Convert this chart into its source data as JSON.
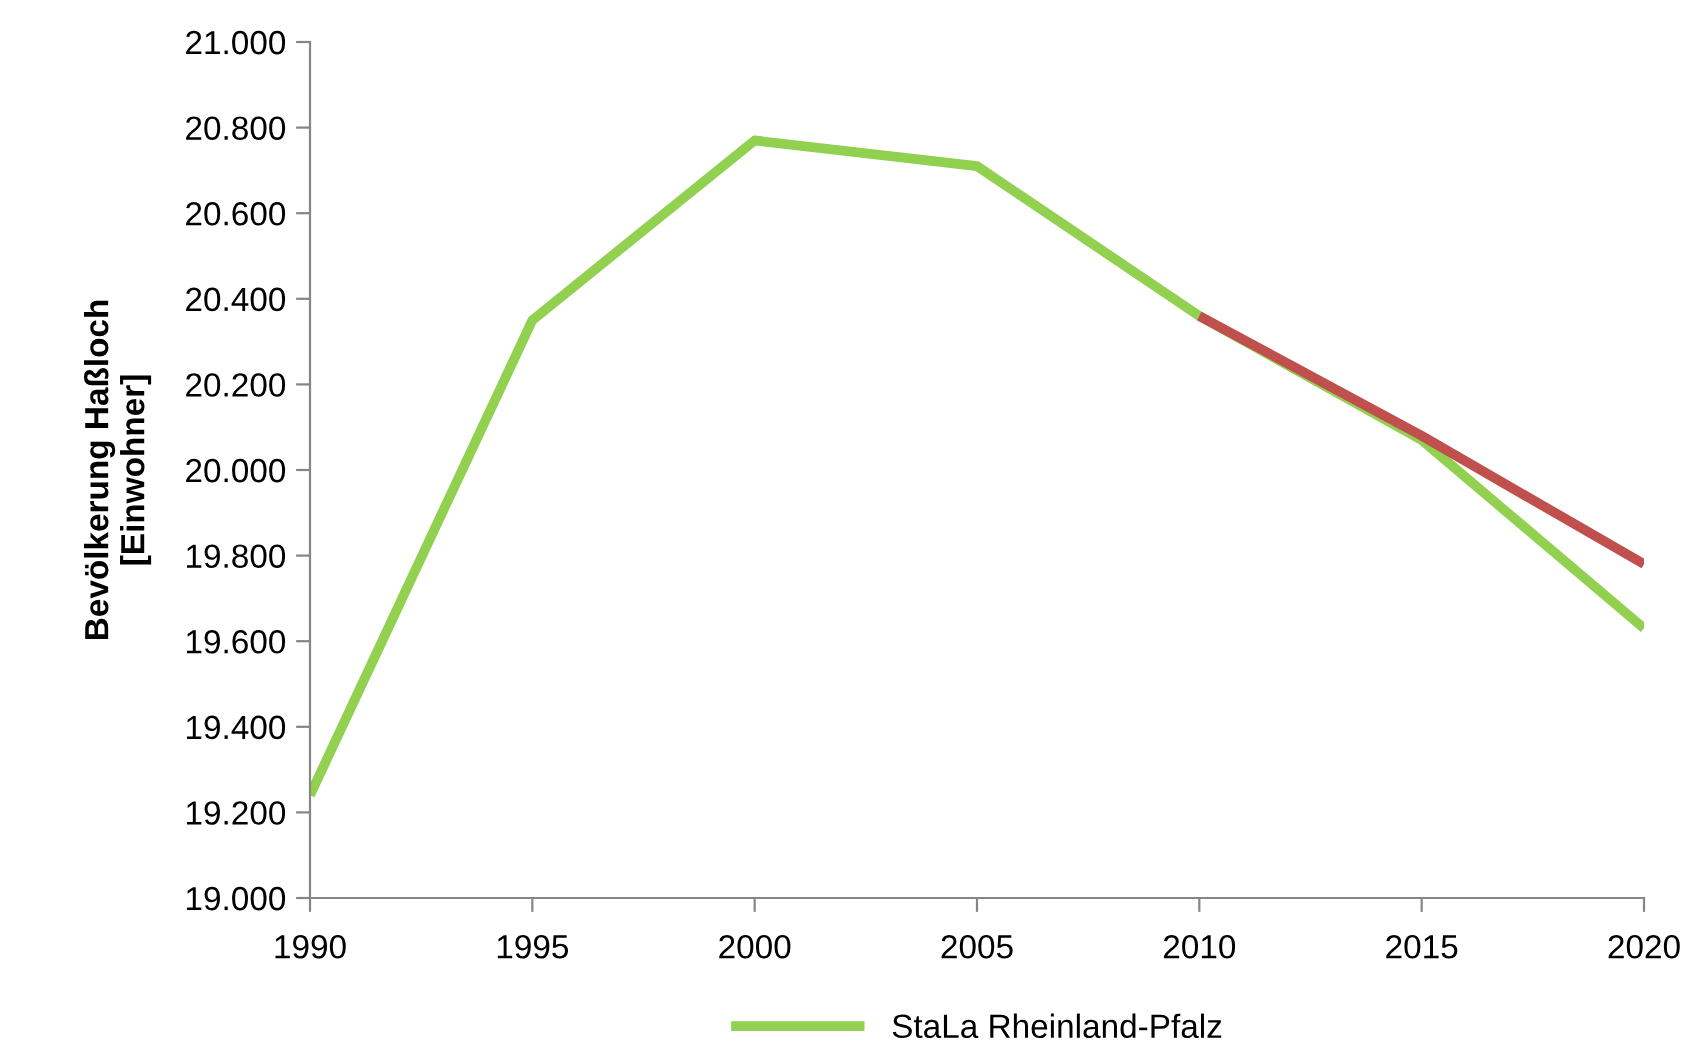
{
  "chart_data": {
    "type": "line",
    "ylabel": "Bevölkerung Haßloch\n[Einwohner]",
    "x": [
      1990,
      1995,
      2000,
      2005,
      2010,
      2015,
      2020
    ],
    "series": [
      {
        "name": "StaLa Rheinland-Pfalz",
        "color": "#92d050",
        "values": [
          19240,
          20350,
          20770,
          20710,
          20360,
          20070,
          19630
        ]
      },
      {
        "color": "#c0504d",
        "x": [
          2010,
          2015,
          2020
        ],
        "values": [
          20360,
          20080,
          19780
        ]
      }
    ],
    "xlim": [
      1990,
      2020
    ],
    "xticks": [
      1990,
      1995,
      2000,
      2005,
      2010,
      2015,
      2020
    ],
    "ylim": [
      19000,
      21000
    ],
    "yticks": [
      {
        "value": 19000,
        "label": "19.000"
      },
      {
        "value": 19200,
        "label": "19.200"
      },
      {
        "value": 19400,
        "label": "19.400"
      },
      {
        "value": 19600,
        "label": "19.600"
      },
      {
        "value": 19800,
        "label": "19.800"
      },
      {
        "value": 20000,
        "label": "20.000"
      },
      {
        "value": 20200,
        "label": "20.200"
      },
      {
        "value": 20400,
        "label": "20.400"
      },
      {
        "value": 20600,
        "label": "20.600"
      },
      {
        "value": 20800,
        "label": "20.800"
      },
      {
        "value": 21000,
        "label": "21.000"
      }
    ],
    "grid": false,
    "legend": "bottom",
    "marker": "none",
    "line_style": "solid"
  }
}
